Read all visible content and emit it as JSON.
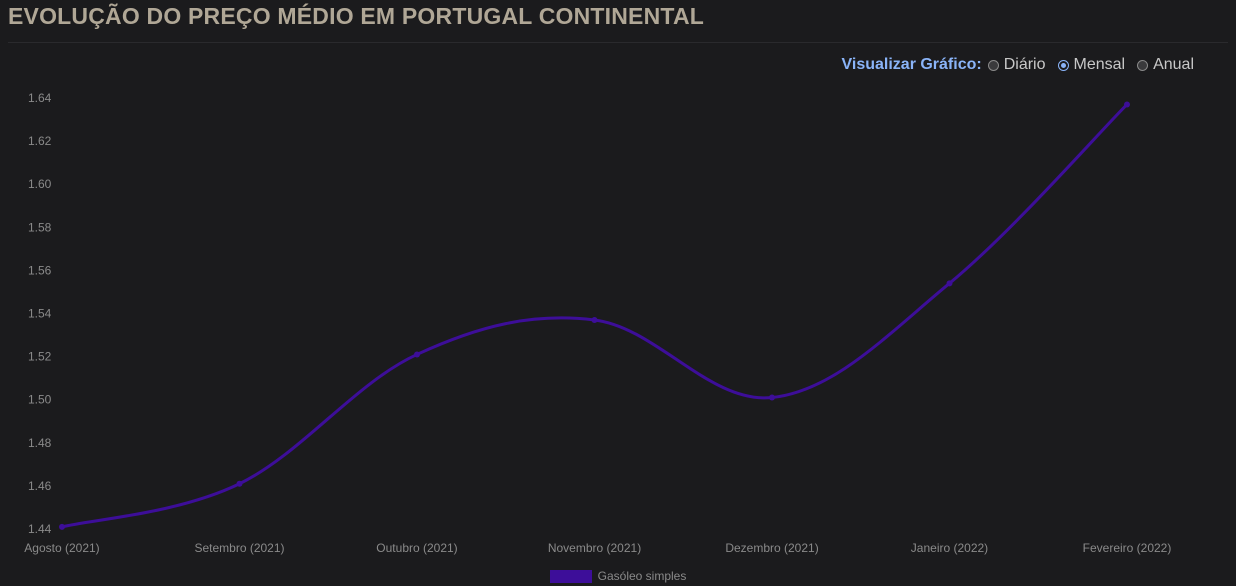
{
  "header": {
    "title": "EVOLUÇÃO DO PREÇO MÉDIO EM PORTUGAL CONTINENTAL"
  },
  "view_selector": {
    "label": "Visualizar Gráfico:",
    "options": [
      {
        "label": "Diário",
        "checked": false
      },
      {
        "label": "Mensal",
        "checked": true
      },
      {
        "label": "Anual",
        "checked": false
      }
    ]
  },
  "colors": {
    "series": "#3d0e99",
    "title": "#b0a796",
    "accent": "#8ab4f8",
    "background": "#1b1b1d"
  },
  "chart_data": {
    "type": "line",
    "categories": [
      "Agosto (2021)",
      "Setembro (2021)",
      "Outubro (2021)",
      "Novembro (2021)",
      "Dezembro (2021)",
      "Janeiro (2022)",
      "Fevereiro (2022)"
    ],
    "series": [
      {
        "name": "Gasóleo simples",
        "values": [
          1.441,
          1.461,
          1.521,
          1.537,
          1.501,
          1.554,
          1.637
        ]
      }
    ],
    "yticks": [
      "1.44",
      "1.46",
      "1.48",
      "1.50",
      "1.52",
      "1.54",
      "1.56",
      "1.58",
      "1.60",
      "1.62",
      "1.64"
    ],
    "ylim": [
      1.44,
      1.64
    ],
    "grid": false,
    "legend_position": "bottom"
  }
}
